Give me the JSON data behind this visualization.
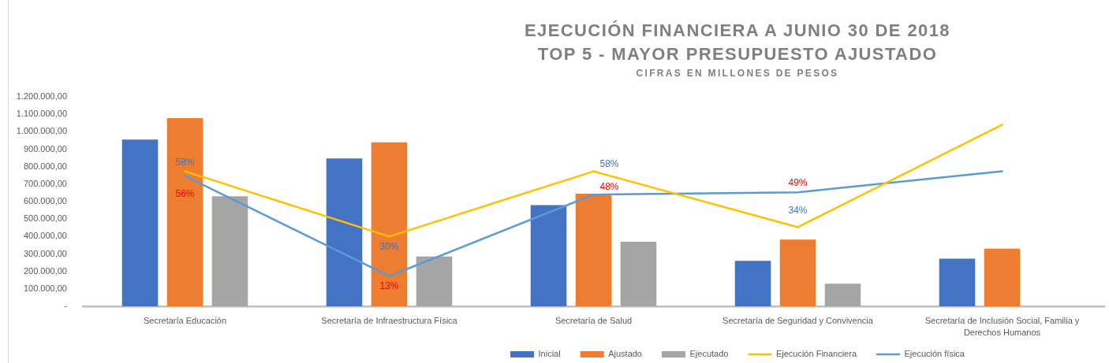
{
  "chart_data": {
    "type": "bar",
    "title": "EJECUCIÓN FINANCIERA A JUNIO 30 DE 2018\nTOP 5 - MAYOR PRESUPUESTO AJUSTADO",
    "subtitle": "CIFRAS EN MILLONES DE PESOS",
    "categories": [
      "Secretaría Educación",
      "Secretaría de Infraestructura Física",
      "Secretaría de Salud",
      "Secretaría de Seguridad y Convivencia",
      "Secretaría de Inclusión Social, Familia y Derechos Humanos"
    ],
    "series": [
      {
        "name": "Inicial",
        "color": "#4472c4",
        "values": [
          955000,
          847000,
          580000,
          260000,
          273000
        ]
      },
      {
        "name": "Ajustado",
        "color": "#ed7d31",
        "values": [
          1078000,
          940000,
          645000,
          382000,
          330000
        ]
      },
      {
        "name": "Ejecutado",
        "color": "#a5a5a5",
        "values": [
          630000,
          285000,
          370000,
          130000,
          null
        ]
      },
      {
        "name": "Ejecución Financiera",
        "type": "line",
        "axis": "y2",
        "color": "#ffc000",
        "values": [
          58,
          30,
          58,
          34,
          78
        ],
        "value_labels": [
          "58%",
          "30%",
          "58%",
          "34%",
          null
        ]
      },
      {
        "name": "Ejecución física",
        "type": "line",
        "axis": "y2",
        "color": "#5b9bd5",
        "values": [
          56,
          13,
          48,
          49,
          58
        ],
        "value_labels": [
          "56%",
          "13%",
          "48%",
          "49%",
          null
        ]
      }
    ],
    "ylim": [
      0,
      1200000
    ],
    "yticks": [
      {
        "value": 0,
        "label": "-"
      },
      {
        "value": 100000,
        "label": "100.000,00"
      },
      {
        "value": 200000,
        "label": "200.000,00"
      },
      {
        "value": 300000,
        "label": "300.000,00"
      },
      {
        "value": 400000,
        "label": "400.000,00"
      },
      {
        "value": 500000,
        "label": "500.000,00"
      },
      {
        "value": 600000,
        "label": "600.000,00"
      },
      {
        "value": 700000,
        "label": "700.000,00"
      },
      {
        "value": 800000,
        "label": "800.000,00"
      },
      {
        "value": 900000,
        "label": "900.000,00"
      },
      {
        "value": 1000000,
        "label": "1.000.000,00"
      },
      {
        "value": 1100000,
        "label": "1.100.000,00"
      },
      {
        "value": 1200000,
        "label": "1.200.000,00"
      }
    ],
    "tick_labels": "xy",
    "legend": "bottom"
  }
}
